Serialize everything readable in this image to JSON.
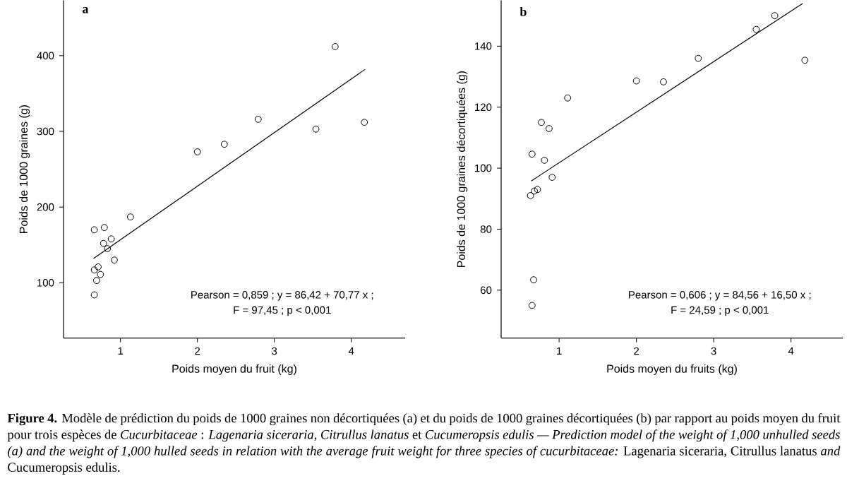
{
  "chart_data": [
    {
      "type": "scatter",
      "title": "a",
      "xlabel": "Poids moyen du fruit (kg)",
      "ylabel": "Poids de 1000 graines (g)",
      "xlim": [
        0.26,
        4.7
      ],
      "ylim": [
        27,
        473
      ],
      "xticks": [
        1,
        2,
        3,
        4
      ],
      "yticks": [
        100,
        200,
        300,
        400
      ],
      "series": [
        {
          "marker": "circle",
          "color": "#000000",
          "x": [
            0.66,
            0.79,
            0.78,
            0.88,
            0.83,
            0.92,
            1.13,
            0.66,
            0.71,
            0.74,
            0.69,
            0.66,
            2.0,
            2.35,
            2.79,
            3.54,
            3.79,
            4.17
          ],
          "values": [
            170,
            173,
            152,
            158,
            145,
            130,
            187,
            117,
            121,
            111,
            103,
            84,
            273,
            283,
            316,
            303,
            412,
            312
          ]
        },
        {
          "type": "line",
          "marker": "none",
          "color": "#000000",
          "x": [
            0.65,
            4.18
          ],
          "values": [
            132,
            382
          ]
        }
      ],
      "annotations": [
        "Pearson = 0,859 ; y = 86,42 + 70,77 x ;",
        "F = 97,45 ; p < 0,001",
        "**Figure 4.** Modèle de prédiction du poids de 1000 graines non décortiquées (a) et du poids de 1000 graines décortiquées (b) par rapport au poids moyen du fruit pour trois espèces de *Cucurbitaceae* : *Lagenaria siceraria*, *Citrullus lanatus* et *Cucumeropsis edulis — Prediction model of the weight of 1,000 unhulled seeds (a) and the weight of 1,000 hulled seeds in relation with the average fruit weight for three species of cucurbitaceae:* Lagenaria siceraria, Citrullus lanatus *and* Cucumeropsis edulis."
      ]
    },
    {
      "type": "scatter",
      "title": "b",
      "xlabel": "Poids moyen du fruits (kg)",
      "ylabel": "Poids de 1000 graines décortiquées (g)",
      "xlim": [
        0.25,
        4.67
      ],
      "ylim": [
        44.3,
        155
      ],
      "xticks": [
        1,
        2,
        3,
        4
      ],
      "yticks": [
        60,
        80,
        100,
        120,
        140
      ],
      "series": [
        {
          "marker": "circle",
          "color": "#000000",
          "x": [
            0.65,
            0.77,
            0.87,
            0.81,
            0.91,
            0.63,
            0.68,
            0.72,
            0.67,
            0.65,
            1.11,
            2.0,
            2.35,
            2.8,
            3.55,
            3.79,
            4.18
          ],
          "values": [
            104.6,
            115,
            113,
            102.6,
            97,
            91,
            92.5,
            93,
            63.4,
            55,
            123,
            128.6,
            128.3,
            136,
            145.5,
            150,
            135.4
          ]
        },
        {
          "type": "line",
          "marker": "none",
          "color": "#000000",
          "x": [
            0.64,
            4.15
          ],
          "values": [
            95.8,
            154
          ]
        }
      ],
      "annotations": [
        "Pearson = 0,606 ; y = 84,56 + 16,50 x ;",
        "F = 24,59 ; p < 0,001"
      ]
    }
  ]
}
